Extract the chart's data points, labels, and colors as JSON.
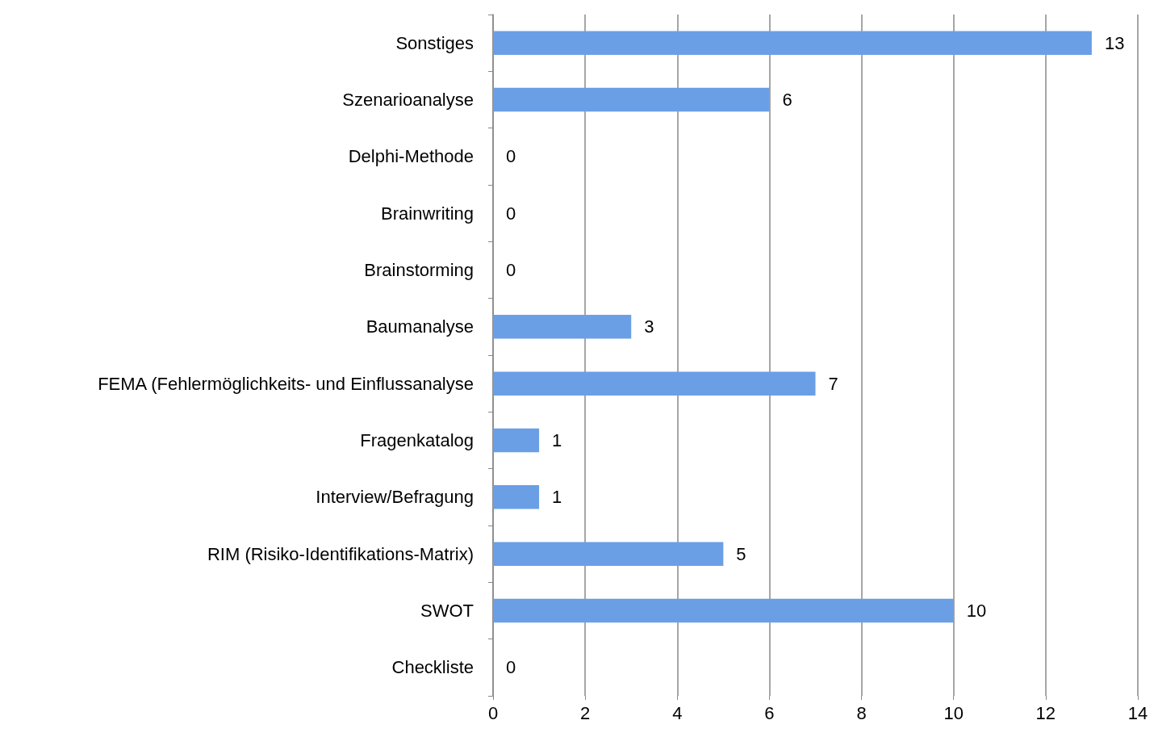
{
  "chart_data": {
    "type": "bar",
    "orientation": "horizontal",
    "categories": [
      "Sonstiges",
      "Szenarioanalyse",
      "Delphi-Methode",
      "Brainwriting",
      "Brainstorming",
      "Baumanalyse",
      "FEMA (Fehlermöglichkeits- und Einflussanalyse",
      "Fragenkatalog",
      "Interview/Befragung",
      "RIM (Risiko-Identifikations-Matrix)",
      "SWOT",
      "Checkliste"
    ],
    "values": [
      13,
      6,
      0,
      0,
      0,
      3,
      7,
      1,
      1,
      5,
      10,
      0
    ],
    "color": "#6a9fe6",
    "xlim": [
      0,
      14
    ],
    "xticks": [
      0,
      2,
      4,
      6,
      8,
      10,
      12,
      14
    ],
    "grid": "x",
    "data_labels": true
  }
}
